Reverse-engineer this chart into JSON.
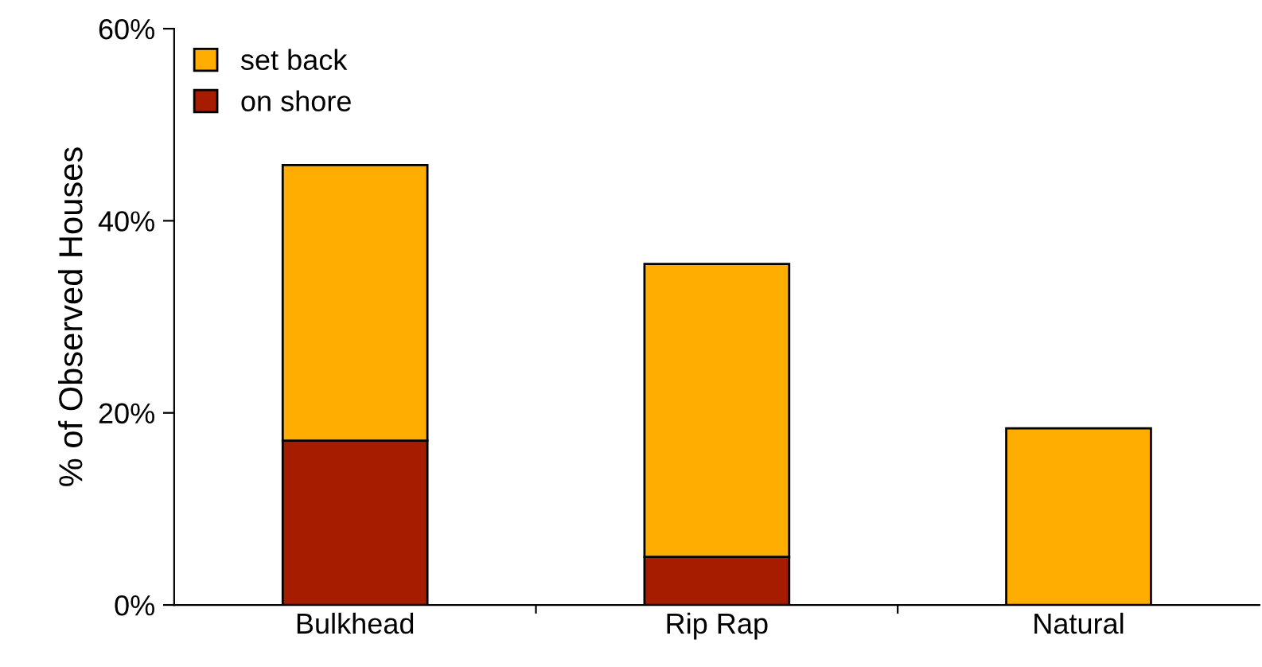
{
  "chart_data": {
    "type": "bar",
    "stacked": true,
    "ylabel": "% of Observed Houses",
    "categories": [
      "Bulkhead",
      "Rip Rap",
      "Natural"
    ],
    "series": [
      {
        "name": "on shore",
        "color": "#a51c00",
        "values": [
          17.1,
          5.0,
          null
        ]
      },
      {
        "name": "set back",
        "color": "#ffad00",
        "values": [
          28.7,
          30.5,
          18.4
        ]
      }
    ],
    "ylim": [
      0,
      60
    ],
    "yticks": [
      {
        "value": 0,
        "label": "0%"
      },
      {
        "value": 20,
        "label": "20%"
      },
      {
        "value": 40,
        "label": "40%"
      },
      {
        "value": 60,
        "label": "60%"
      }
    ],
    "grid": false,
    "legend": "top left"
  }
}
